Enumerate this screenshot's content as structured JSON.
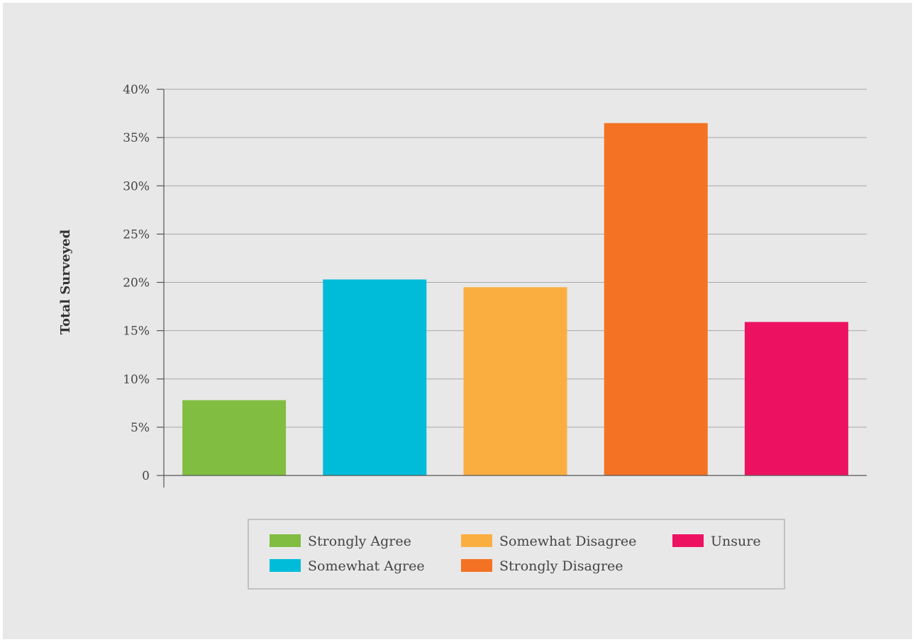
{
  "chart_data": {
    "type": "bar",
    "title": "",
    "xlabel": "",
    "ylabel": "Total Surveyed",
    "ylim": [
      0,
      40
    ],
    "yticks": [
      0,
      5,
      10,
      15,
      20,
      25,
      30,
      35,
      40
    ],
    "ytick_labels": [
      "0",
      "5%",
      "10%",
      "15%",
      "20%",
      "25%",
      "30%",
      "35%",
      "40%"
    ],
    "grid": true,
    "legend_position": "bottom-center",
    "categories": [
      "Strongly Agree",
      "Somewhat Agree",
      "Somewhat Disagree",
      "Strongly Disagree",
      "Unsure"
    ],
    "values": [
      7.8,
      20.3,
      19.5,
      36.5,
      15.9
    ],
    "colors": [
      "#80bd41",
      "#00bcd9",
      "#fbae40",
      "#f37224",
      "#ed1261"
    ],
    "legend": [
      "Strongly Agree",
      "Somewhat Agree",
      "Somewhat Disagree",
      "Strongly Disagree",
      "Unsure"
    ]
  }
}
